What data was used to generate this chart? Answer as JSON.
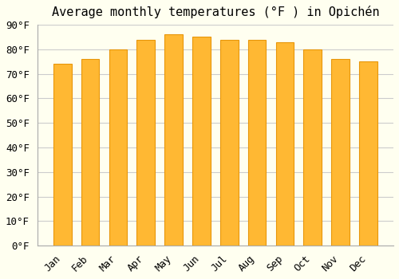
{
  "title": "Average monthly temperatures (°F ) in Opichén",
  "months": [
    "Jan",
    "Feb",
    "Mar",
    "Apr",
    "May",
    "Jun",
    "Jul",
    "Aug",
    "Sep",
    "Oct",
    "Nov",
    "Dec"
  ],
  "values": [
    74,
    76,
    80,
    84,
    86,
    85,
    84,
    84,
    83,
    80,
    76,
    75
  ],
  "bar_color_top": "#FFA500",
  "bar_color_body": "#FFB833",
  "ylim": [
    0,
    90
  ],
  "yticks": [
    0,
    10,
    20,
    30,
    40,
    50,
    60,
    70,
    80,
    90
  ],
  "ytick_labels": [
    "0°F",
    "10°F",
    "20°F",
    "30°F",
    "40°F",
    "50°F",
    "60°F",
    "70°F",
    "80°F",
    "90°F"
  ],
  "bg_color": "#FFFFF0",
  "grid_color": "#CCCCCC",
  "title_fontsize": 11,
  "tick_fontsize": 9,
  "bar_width": 0.65
}
